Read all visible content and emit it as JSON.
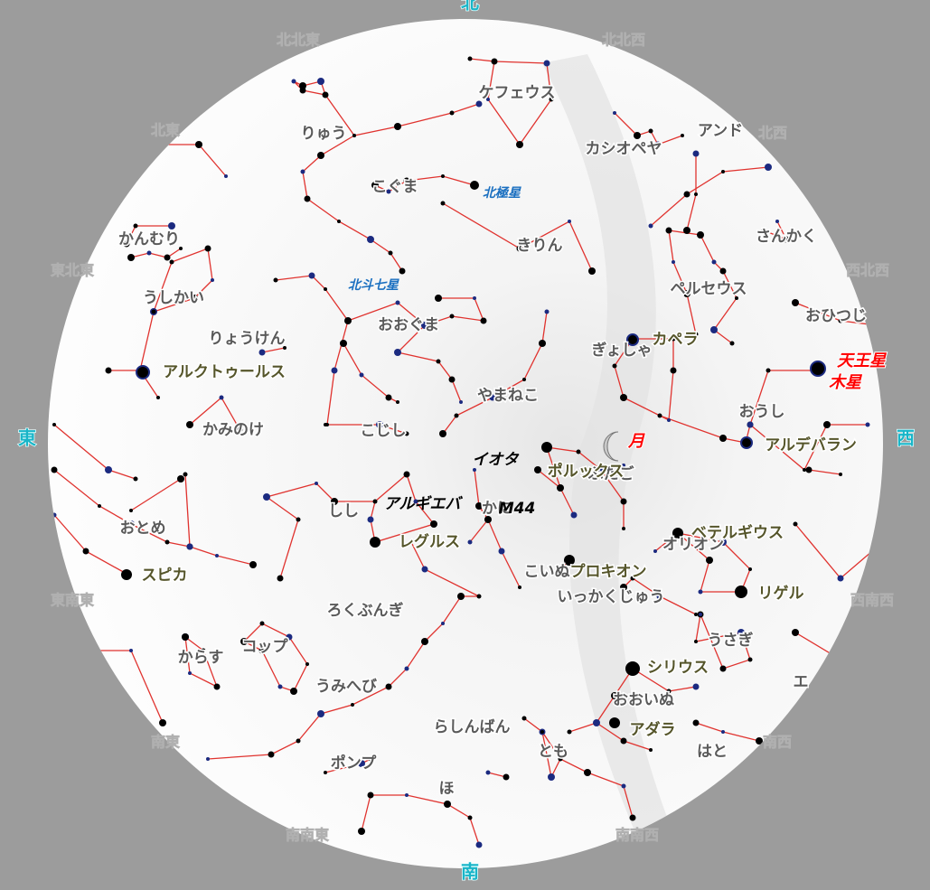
{
  "directions": {
    "n": "北",
    "nne": "北北東",
    "nnw": "北北西",
    "ne": "北東",
    "nw": "北西",
    "ene": "東北東",
    "wnw": "西北西",
    "e": "東",
    "w": "西",
    "ese": "東南東",
    "wsw": "西南西",
    "se": "南東",
    "sw": "南西",
    "sse": "南南東",
    "ssw": "南南西",
    "s": "南"
  },
  "constellations": [
    "ケフェウス",
    "りゅう",
    "カシオペヤ",
    "アンド",
    "こぐま",
    "きりん",
    "かんむり",
    "さんかく",
    "うしかい",
    "ペルセウス",
    "おひつじ",
    "りょうけん",
    "おおぐま",
    "ぎょしゃ",
    "やまねこ",
    "かみのけ",
    "こじし",
    "おうし",
    "ふたご",
    "しし",
    "かに",
    "おとめ",
    "オリオン",
    "こいぬ",
    "ろくぶんぎ",
    "いっかくじゅう",
    "うさぎ",
    "からす",
    "コップ",
    "うみへび",
    "おおいぬ",
    "らしんばん",
    "とも",
    "はと",
    "ポンプ",
    "ほ",
    "エ"
  ],
  "stars": [
    "アルクトゥールス",
    "カペラ",
    "アルデバラン",
    "ポルックス",
    "ベテルギウス",
    "スピカ",
    "レグルス",
    "プロキオン",
    "リゲル",
    "シリウス",
    "アダラ"
  ],
  "pole_star": "北極星",
  "big_dipper": "北斗七星",
  "planets": [
    "天王星",
    "木星"
  ],
  "moon": "月",
  "markers": [
    "イオタ",
    "アルギエバ",
    "M44"
  ]
}
